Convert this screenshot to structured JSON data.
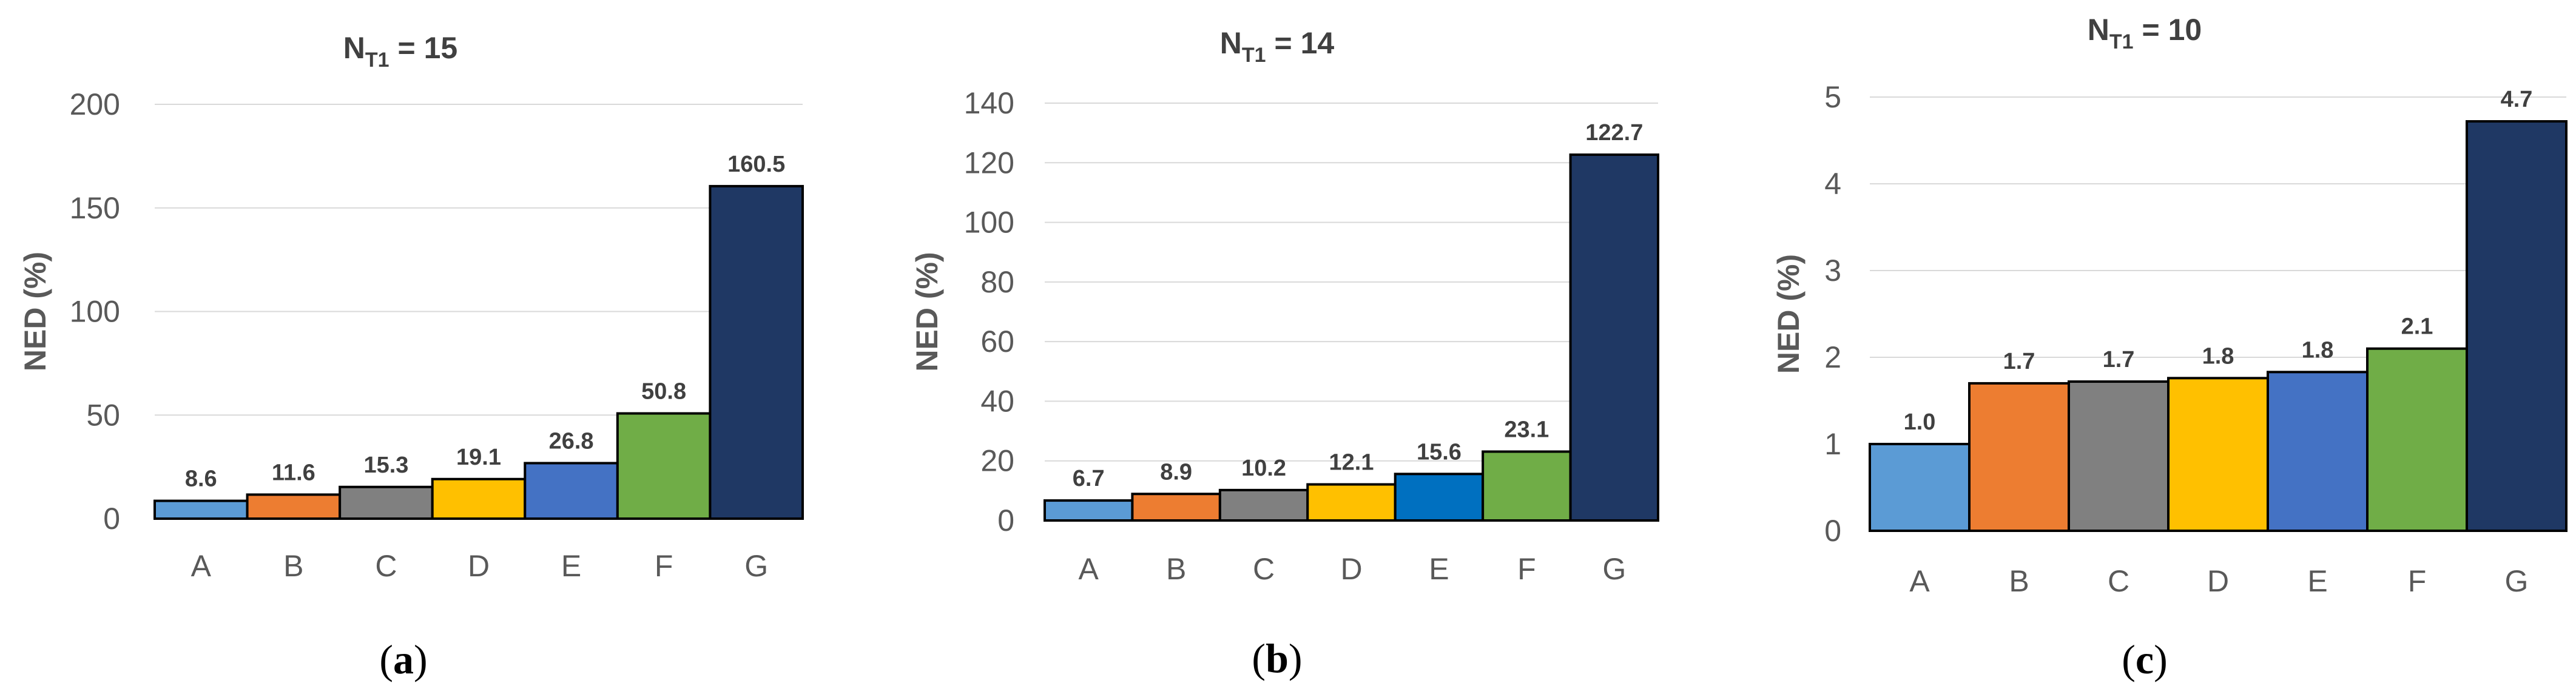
{
  "chart_data": [
    {
      "type": "bar",
      "panel": "a",
      "title": "N",
      "title_sub": "T1",
      "title_suffix": " = 15",
      "xlabel": "",
      "ylabel": "NED (%)",
      "ylim": [
        0,
        200
      ],
      "yticks": [
        0,
        50,
        100,
        150,
        200
      ],
      "grid": true,
      "categories": [
        "A",
        "B",
        "C",
        "D",
        "E",
        "F",
        "G"
      ],
      "values": [
        8.6,
        11.6,
        15.3,
        19.1,
        26.8,
        50.8,
        160.5
      ],
      "labels": [
        "8.6",
        "11.6",
        "15.3",
        "19.1",
        "26.8",
        "50.8",
        "160.5"
      ],
      "colors": [
        "#5b9bd5",
        "#ed7d31",
        "#808080",
        "#ffc000",
        "#4472c4",
        "#70ad47",
        "#1f3864"
      ]
    },
    {
      "type": "bar",
      "panel": "b",
      "title": "N",
      "title_sub": "T1",
      "title_suffix": " = 14",
      "xlabel": "",
      "ylabel": "NED (%)",
      "ylim": [
        0,
        140
      ],
      "yticks": [
        0,
        20,
        40,
        60,
        80,
        100,
        120,
        140
      ],
      "grid": true,
      "categories": [
        "A",
        "B",
        "C",
        "D",
        "E",
        "F",
        "G"
      ],
      "values": [
        6.7,
        8.9,
        10.2,
        12.1,
        15.6,
        23.1,
        122.7
      ],
      "labels": [
        "6.7",
        "8.9",
        "10.2",
        "12.1",
        "15.6",
        "23.1",
        "122.7"
      ],
      "colors": [
        "#5b9bd5",
        "#ed7d31",
        "#808080",
        "#ffc000",
        "#0070c0",
        "#70ad47",
        "#1f3864"
      ]
    },
    {
      "type": "bar",
      "panel": "c",
      "title": "N",
      "title_sub": "T1",
      "title_suffix": " = 10",
      "xlabel": "",
      "ylabel": "NED (%)",
      "ylim": [
        0,
        5
      ],
      "yticks": [
        0,
        1,
        2,
        3,
        4,
        5
      ],
      "grid": true,
      "categories": [
        "A",
        "B",
        "C",
        "D",
        "E",
        "F",
        "G"
      ],
      "values": [
        1.0,
        1.7,
        1.72,
        1.76,
        1.83,
        2.1,
        4.72
      ],
      "labels": [
        "1.0",
        "1.7",
        "1.7",
        "1.8",
        "1.8",
        "2.1",
        "4.7"
      ],
      "colors": [
        "#5b9bd5",
        "#ed7d31",
        "#808080",
        "#ffc000",
        "#4472c4",
        "#70ad47",
        "#1f3864"
      ]
    }
  ],
  "panel_labels": [
    {
      "open": "(",
      "letter": "a",
      "close": ")"
    },
    {
      "open": "(",
      "letter": "b",
      "close": ")"
    },
    {
      "open": "(",
      "letter": "c",
      "close": ")"
    }
  ]
}
